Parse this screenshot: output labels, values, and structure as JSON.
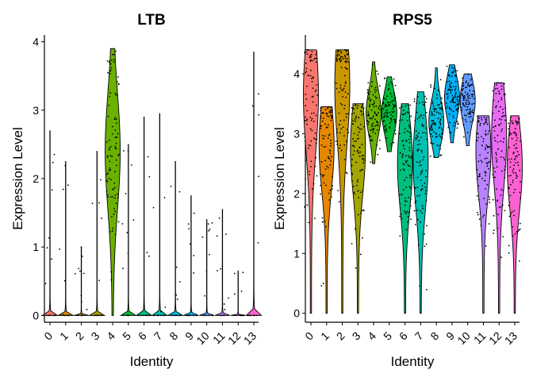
{
  "chart_data": [
    {
      "type": "violin",
      "title": "LTB",
      "xlabel": "Identity",
      "ylabel": "Expression Level",
      "categories": [
        "0",
        "1",
        "2",
        "3",
        "4",
        "5",
        "6",
        "7",
        "8",
        "9",
        "10",
        "11",
        "12",
        "13"
      ],
      "ylim": [
        -0.1,
        4.1
      ],
      "yticks": [
        0,
        1,
        2,
        3,
        4
      ],
      "max": [
        2.7,
        2.25,
        1.0,
        2.4,
        3.9,
        2.5,
        2.9,
        2.95,
        2.25,
        1.75,
        1.4,
        1.55,
        0.65,
        3.85
      ],
      "median": [
        0,
        0,
        0,
        0,
        2.4,
        0,
        0,
        0,
        0,
        0,
        0,
        0,
        0,
        0
      ],
      "colors": [
        "#F8766D",
        "#E58700",
        "#C99800",
        "#A3A500",
        "#6BB100",
        "#00BA38",
        "#00BF7D",
        "#00C0AF",
        "#00BCD8",
        "#00B0F6",
        "#619CFF",
        "#B983FF",
        "#E76BF3",
        "#FD61D1"
      ]
    },
    {
      "type": "violin",
      "title": "RPS5",
      "xlabel": "Identity",
      "ylabel": "Expression Level",
      "categories": [
        "0",
        "1",
        "2",
        "3",
        "4",
        "5",
        "6",
        "7",
        "8",
        "9",
        "10",
        "11",
        "12",
        "13"
      ],
      "ylim": [
        -0.15,
        4.65
      ],
      "yticks": [
        0,
        1,
        2,
        3,
        4
      ],
      "min": [
        0.0,
        0.0,
        0.0,
        0.0,
        2.5,
        2.7,
        0.0,
        0.0,
        2.6,
        2.85,
        2.8,
        0.0,
        0.0,
        0.0
      ],
      "max": [
        4.4,
        3.45,
        4.4,
        3.5,
        4.2,
        3.95,
        3.5,
        3.7,
        4.1,
        4.15,
        4.0,
        3.3,
        3.85,
        3.3
      ],
      "median": [
        3.65,
        2.8,
        3.8,
        2.75,
        3.35,
        3.35,
        2.5,
        2.55,
        3.2,
        3.6,
        3.55,
        2.7,
        2.95,
        2.45
      ],
      "colors": [
        "#F8766D",
        "#E58700",
        "#C99800",
        "#A3A500",
        "#6BB100",
        "#00BA38",
        "#00BF7D",
        "#00C0AF",
        "#00BCD8",
        "#00B0F6",
        "#619CFF",
        "#B983FF",
        "#E76BF3",
        "#FD61D1"
      ]
    }
  ]
}
